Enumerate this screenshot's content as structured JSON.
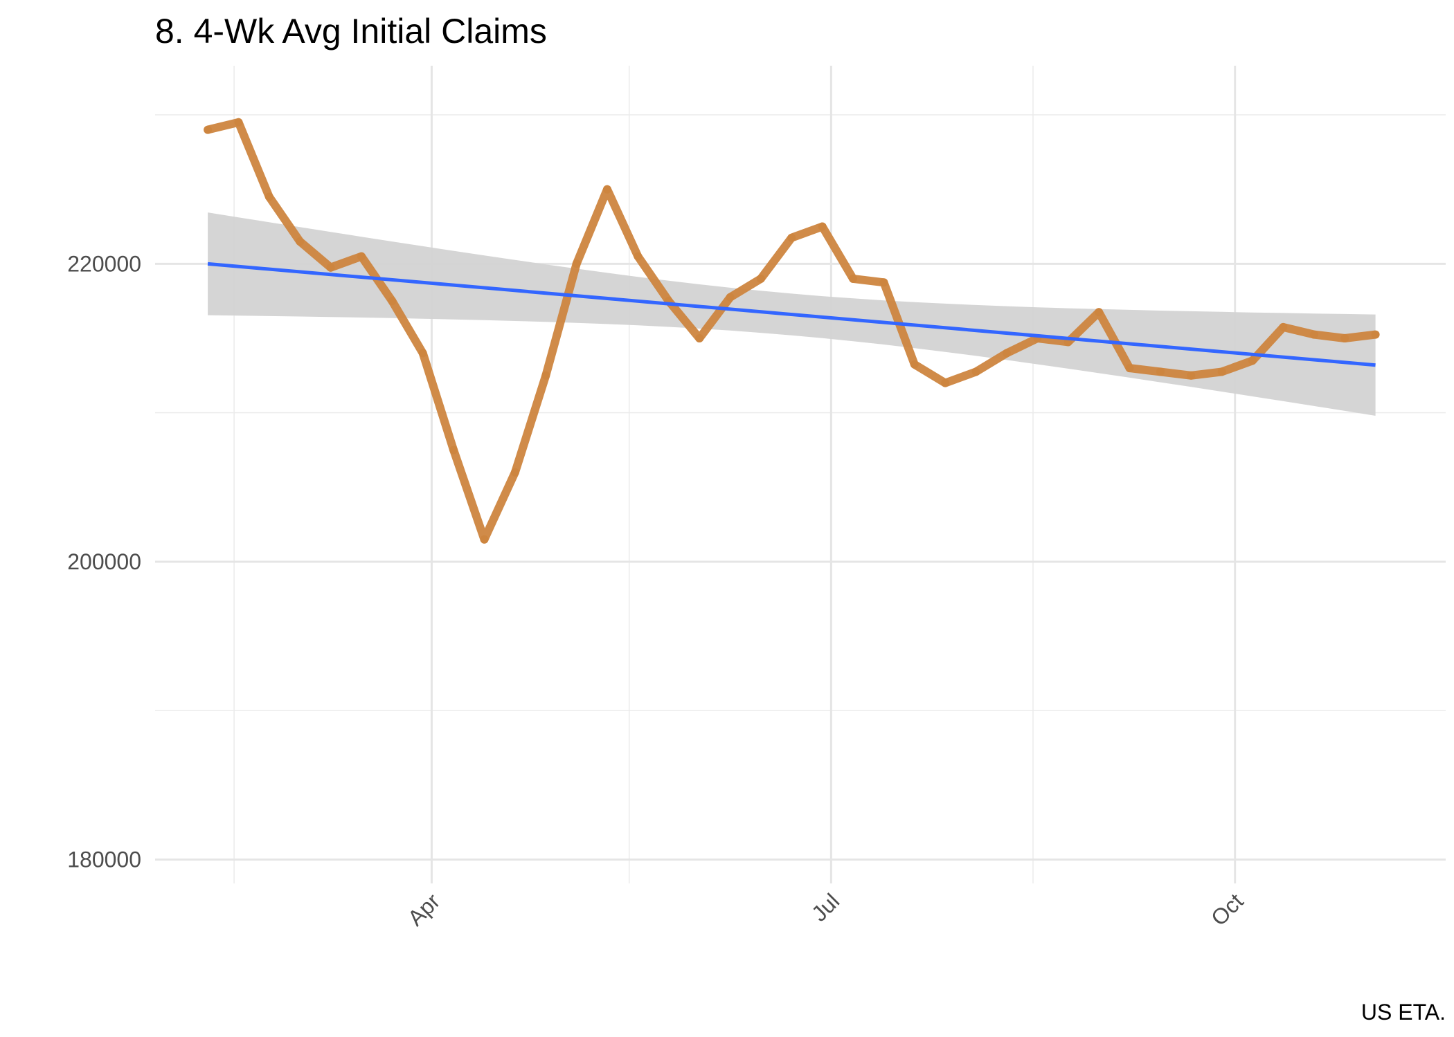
{
  "chart_data": {
    "type": "line",
    "title": "8. 4-Wk Avg Initial Claims",
    "caption": "US ETA.",
    "xlabel": "",
    "ylabel": "",
    "x": [
      "2019-02-09",
      "2019-02-16",
      "2019-02-23",
      "2019-03-02",
      "2019-03-09",
      "2019-03-16",
      "2019-03-23",
      "2019-03-30",
      "2019-04-06",
      "2019-04-13",
      "2019-04-20",
      "2019-04-27",
      "2019-05-04",
      "2019-05-11",
      "2019-05-18",
      "2019-05-25",
      "2019-06-01",
      "2019-06-08",
      "2019-06-15",
      "2019-06-22",
      "2019-06-29",
      "2019-07-06",
      "2019-07-13",
      "2019-07-20",
      "2019-07-27",
      "2019-08-03",
      "2019-08-10",
      "2019-08-17",
      "2019-08-24",
      "2019-08-31",
      "2019-09-07",
      "2019-09-14",
      "2019-09-21",
      "2019-09-28",
      "2019-10-05",
      "2019-10-12",
      "2019-10-19",
      "2019-10-26",
      "2019-11-02"
    ],
    "series": [
      {
        "values": [
          229000,
          229500,
          224500,
          221500,
          219750,
          220500,
          217500,
          214000,
          207500,
          201500,
          206000,
          212500,
          220000,
          225000,
          220500,
          217500,
          215000,
          217750,
          219000,
          221750,
          222500,
          219000,
          218750,
          213250,
          212000,
          212750,
          214000,
          215000,
          214750,
          216750,
          213000,
          212750,
          212500,
          212750,
          213500,
          215750,
          215250,
          215000,
          215250
        ],
        "color": "#cd853f"
      }
    ],
    "trend": {
      "start": 220000,
      "end": 213200,
      "ci_lower_start": 216500,
      "ci_upper_start": 223400,
      "ci_lower_end": 209800,
      "ci_upper_end": 216600,
      "color": "#3366ff",
      "ribbon_color": "#d3d3d3"
    },
    "xlim": [
      "2019-01-28",
      "2019-11-18"
    ],
    "ylim": [
      178400,
      233300
    ],
    "x_ticks": [
      {
        "date": "2019-04-01",
        "label": "Apr"
      },
      {
        "date": "2019-07-01",
        "label": "Jul"
      },
      {
        "date": "2019-10-01",
        "label": "Oct"
      }
    ],
    "x_minor_ticks": [
      "2019-02-15",
      "2019-05-16",
      "2019-08-16"
    ],
    "y_ticks": [
      180000,
      200000,
      220000
    ],
    "y_minor_ticks": [
      190000,
      210000,
      230000
    ],
    "grid": true,
    "legend": "none"
  }
}
